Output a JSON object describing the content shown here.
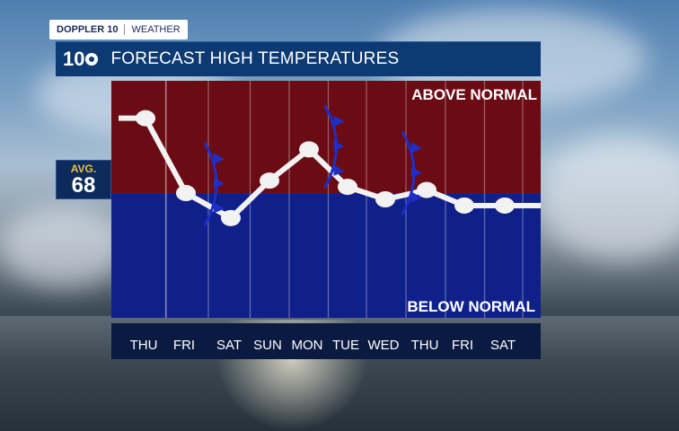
{
  "brand_tag": {
    "station": "DOPPLER 10",
    "section": "WEATHER"
  },
  "header": {
    "logo": "10",
    "title": "FORECAST HIGH TEMPERATURES"
  },
  "average_box": {
    "label": "AVG.",
    "value": "68"
  },
  "colors": {
    "above": "#6b0b14",
    "below": "#10208a",
    "line": "#f2f2f2",
    "front": "#1d2fc8",
    "header": "#0d3a73"
  },
  "chart_data": {
    "type": "line",
    "categories": [
      "THU",
      "FRI",
      "SAT",
      "SUN",
      "MON",
      "TUE",
      "WED",
      "THU",
      "FRI",
      "SAT"
    ],
    "values": [
      80,
      68,
      64,
      70,
      75,
      69,
      67,
      68.5,
      66,
      66
    ],
    "ylim": [
      48,
      86
    ],
    "baseline": 68,
    "above_label": "ABOVE NORMAL",
    "below_label": "BELOW NORMAL",
    "grid": true,
    "fronts_after_day_index": [
      1.5,
      4.5,
      6.5
    ]
  }
}
